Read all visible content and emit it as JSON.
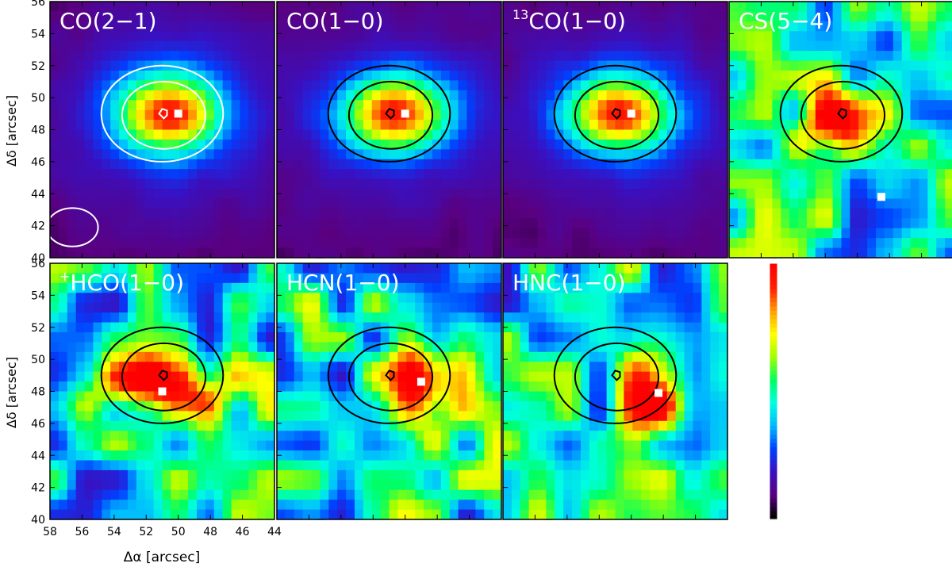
{
  "figure": {
    "xlabel": "Δα [arcsec]",
    "ylabel": "Δδ [arcsec]"
  },
  "chart_data": {
    "type": "heatmap",
    "x_range": [
      58,
      44
    ],
    "y_range": [
      40,
      56
    ],
    "x_ticks": [
      "58",
      "56",
      "54",
      "52",
      "50",
      "48",
      "46",
      "44"
    ],
    "y_ticks": [
      "40",
      "42",
      "44",
      "46",
      "48",
      "50",
      "52",
      "54",
      "56"
    ],
    "colormap": [
      "#000000",
      "#5a0080",
      "#3a10c0",
      "#0040ff",
      "#00b8ff",
      "#00ffe0",
      "#00ff60",
      "#a0ff00",
      "#ffff00",
      "#ffa000",
      "#ff2000",
      "#ff0000"
    ],
    "panels": [
      {
        "title_main": "CO(2−1)",
        "title_sup": "",
        "title_after": "",
        "cbar_ticks": [
          "0",
          "10",
          "20",
          "30",
          "40",
          "50"
        ],
        "cbar_range": [
          0,
          52
        ],
        "peak": [
          50.6,
          49.0,
          2.2,
          1.7
        ],
        "style": "smooth",
        "contour_color": "#ffffff",
        "show_beam": true,
        "marker": [
          50.0,
          49.0
        ]
      },
      {
        "title_main": "CO(1−0)",
        "title_sup": "",
        "title_after": "",
        "cbar_ticks": [
          "0",
          "20",
          "40",
          "60"
        ],
        "cbar_range": [
          -1,
          70
        ],
        "peak": [
          50.6,
          49.0,
          2.2,
          1.6
        ],
        "style": "smooth",
        "contour_color": "#000000",
        "show_beam": false,
        "marker": [
          50.0,
          49.0
        ]
      },
      {
        "title_main": "CO(1−0)",
        "title_sup": "13",
        "title_after": "",
        "cbar_ticks": [
          "0",
          "2",
          "4",
          "6",
          "8"
        ],
        "cbar_range": [
          -0.6,
          9.3
        ],
        "peak": [
          50.8,
          49.0,
          2.2,
          1.6
        ],
        "style": "smooth",
        "contour_color": "#000000",
        "show_beam": false,
        "marker": [
          50.0,
          49.0
        ]
      },
      {
        "title_main": "CS(5−4)",
        "title_sup": "",
        "title_after": "",
        "cbar_ticks": [
          "−0.2",
          "0.0",
          "0.2"
        ],
        "cbar_range": [
          -0.32,
          0.32
        ],
        "peak": [
          51.5,
          48.5,
          1.8,
          1.5
        ],
        "style": "noisy",
        "contour_color": "#000000",
        "show_beam": false,
        "marker": [
          48.5,
          43.8
        ]
      },
      {
        "title_main": "HCO",
        "title_sup": "+",
        "title_after": "(1−0)",
        "cbar_ticks": [
          "−1",
          "0",
          "1",
          "2"
        ],
        "cbar_range": [
          -1.2,
          2.4
        ],
        "peak": [
          51.0,
          48.4,
          3.2,
          1.4
        ],
        "style": "noisy",
        "contour_color": "#000000",
        "show_beam": false,
        "marker": [
          51.0,
          48.0
        ]
      },
      {
        "title_main": "HCN(1−0)",
        "title_sup": "",
        "title_after": "",
        "cbar_ticks": [
          "−1",
          "0",
          "1",
          "2",
          "3"
        ],
        "cbar_range": [
          -1.1,
          3.1
        ],
        "peak": [
          49.0,
          48.5,
          1.5,
          2.0
        ],
        "style": "noisy",
        "contour_color": "#000000",
        "show_beam": false,
        "marker": [
          49.0,
          48.6
        ]
      },
      {
        "title_main": "HNC(1−0)",
        "title_sup": "",
        "title_after": "",
        "cbar_ticks": [
          "−1.0",
          "−0.5",
          "0.0",
          "0.5",
          "1.0",
          "1.5"
        ],
        "cbar_range": [
          -1.35,
          1.7
        ],
        "peak": [
          48.8,
          48.0,
          1.5,
          2.2
        ],
        "style": "noisy",
        "contour_color": "#000000",
        "show_beam": false,
        "marker": [
          48.3,
          47.9
        ]
      }
    ]
  }
}
